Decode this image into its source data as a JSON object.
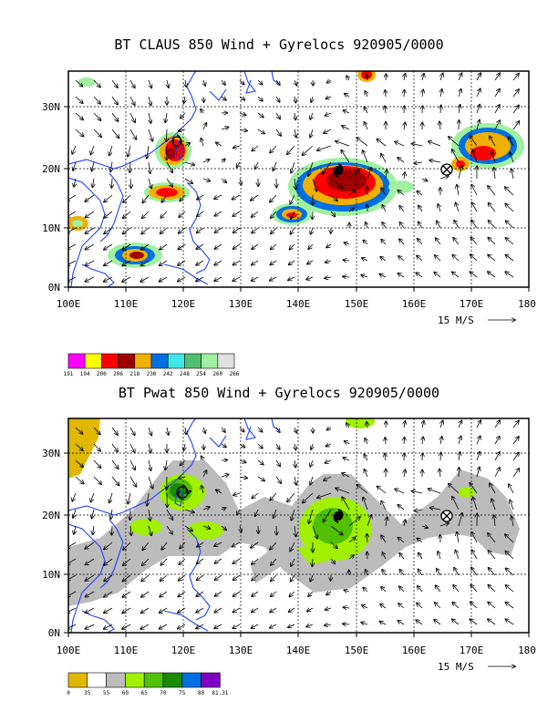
{
  "titles": {
    "top": "BT CLAUS 850 Wind + Gyrelocs 920905/0000",
    "bottom": "BT Pwat 850 Wind + Gyrelocs 920905/0000"
  },
  "axes": {
    "lon_ticks": [
      "100E",
      "110E",
      "120E",
      "130E",
      "140E",
      "150E",
      "160E",
      "170E",
      "180"
    ],
    "lat_ticks": [
      "0N",
      "10N",
      "20N",
      "30N"
    ]
  },
  "reference_vector": "15 M/S",
  "top_colorbar": {
    "labels": [
      "191",
      "194",
      "200",
      "206",
      "218",
      "230",
      "242",
      "248",
      "254",
      "260",
      "266"
    ],
    "colors": [
      "#ff00ff",
      "#ffff00",
      "#ff0000",
      "#a00000",
      "#f0b000",
      "#0070e0",
      "#40e8e8",
      "#50c070",
      "#a0f0a0",
      "#e0e0e0"
    ]
  },
  "bottom_colorbar": {
    "labels": [
      "0",
      "35",
      "55",
      "60",
      "65",
      "70",
      "75",
      "80",
      "81.31"
    ],
    "colors": [
      "#e0b800",
      "#ffffff",
      "#bcbcbc",
      "#a0f000",
      "#50c000",
      "#1a8a00",
      "#0070e0",
      "#8000c0"
    ]
  },
  "map": {
    "lon_range": [
      100,
      180
    ],
    "lat_range": [
      0,
      35
    ],
    "gyre_locations": [
      {
        "lon": 147,
        "lat": 19.5,
        "symbol": "typhoon"
      },
      {
        "lon": 165.5,
        "lat": 19,
        "symbol": "circle-x"
      },
      {
        "lon": 119.5,
        "lat": 23.5,
        "symbol": "typhoon-small"
      }
    ]
  }
}
